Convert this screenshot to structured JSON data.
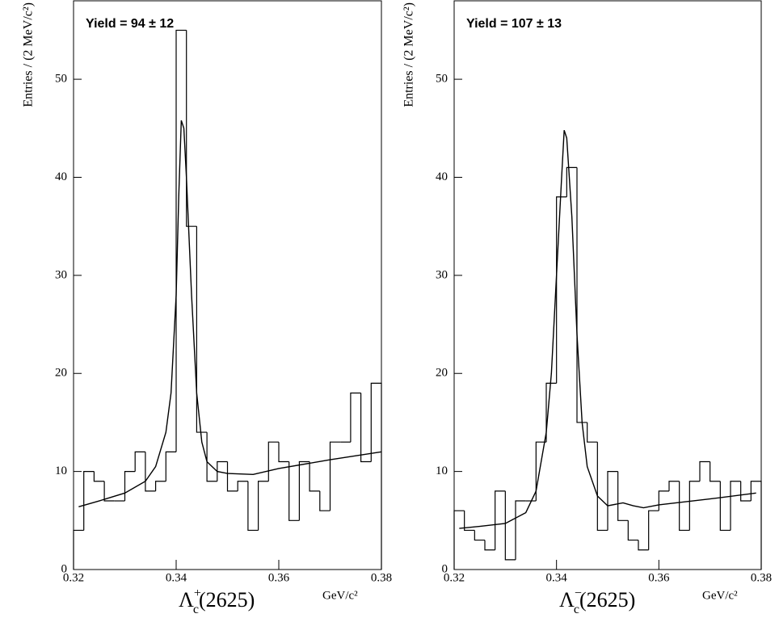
{
  "chart_data": [
    {
      "type": "histogram",
      "annotation": "Yield = 94 ± 12",
      "ylabel": "Entries / (2 MeV/c²)",
      "xlabel": {
        "base": "Λ",
        "sub": "c",
        "sup": "+",
        "rest": "(2625)"
      },
      "xunit": "GeV/c²",
      "bins": [
        0.32,
        0.322,
        0.324,
        0.326,
        0.328,
        0.33,
        0.332,
        0.334,
        0.336,
        0.338,
        0.34,
        0.342,
        0.344,
        0.346,
        0.348,
        0.35,
        0.352,
        0.354,
        0.356,
        0.358,
        0.36,
        0.362,
        0.364,
        0.366,
        0.368,
        0.37,
        0.372,
        0.374,
        0.376,
        0.378,
        0.38
      ],
      "values": [
        4,
        10,
        9,
        7,
        7,
        10,
        12,
        8,
        9,
        12,
        55,
        35,
        14,
        9,
        11,
        8,
        9,
        4,
        9,
        13,
        11,
        5,
        11,
        8,
        6,
        13,
        13,
        18,
        11,
        19
      ],
      "fit": {
        "x": [
          0.321,
          0.325,
          0.33,
          0.334,
          0.336,
          0.338,
          0.339,
          0.34,
          0.3405,
          0.341,
          0.3415,
          0.342,
          0.343,
          0.344,
          0.345,
          0.346,
          0.348,
          0.35,
          0.355,
          0.36,
          0.37,
          0.38
        ],
        "values": [
          6.4,
          7.0,
          7.8,
          9.0,
          10.5,
          14,
          18,
          28,
          38,
          45.8,
          45,
          40,
          28,
          18,
          13,
          11,
          10,
          9.8,
          9.7,
          10.3,
          11.2,
          12.0
        ]
      },
      "xlim": [
        0.32,
        0.38
      ],
      "xticks": [
        0.32,
        0.34,
        0.36,
        0.38
      ],
      "ylim": [
        0,
        58
      ],
      "yticks": [
        0,
        10,
        20,
        30,
        40,
        50
      ]
    },
    {
      "type": "histogram",
      "annotation": "Yield = 107 ± 13",
      "ylabel": "Entries / (2 MeV/c²)",
      "xlabel": {
        "base": "Λ",
        "sub": "c",
        "sup": "−",
        "rest": "(2625)"
      },
      "xunit": "GeV/c²",
      "bins": [
        0.32,
        0.322,
        0.324,
        0.326,
        0.328,
        0.33,
        0.332,
        0.334,
        0.336,
        0.338,
        0.34,
        0.342,
        0.344,
        0.346,
        0.348,
        0.35,
        0.352,
        0.354,
        0.356,
        0.358,
        0.36,
        0.362,
        0.364,
        0.366,
        0.368,
        0.37,
        0.372,
        0.374,
        0.376,
        0.378,
        0.38
      ],
      "values": [
        6,
        4,
        3,
        2,
        8,
        1,
        7,
        7,
        13,
        19,
        38,
        41,
        15,
        13,
        4,
        10,
        5,
        3,
        2,
        6,
        8,
        9,
        4,
        9,
        11,
        9,
        4,
        9,
        7,
        9
      ],
      "fit": {
        "x": [
          0.321,
          0.325,
          0.33,
          0.334,
          0.336,
          0.338,
          0.339,
          0.34,
          0.341,
          0.3415,
          0.342,
          0.343,
          0.344,
          0.345,
          0.346,
          0.348,
          0.35,
          0.353,
          0.355,
          0.357,
          0.36,
          0.37,
          0.379
        ],
        "values": [
          4.2,
          4.4,
          4.7,
          5.8,
          8,
          14,
          20,
          30,
          40,
          44.8,
          44,
          36,
          24,
          15,
          10.5,
          7.5,
          6.5,
          6.8,
          6.5,
          6.3,
          6.6,
          7.2,
          7.8
        ]
      },
      "xlim": [
        0.32,
        0.38
      ],
      "xticks": [
        0.32,
        0.34,
        0.36,
        0.38
      ],
      "ylim": [
        0,
        58
      ],
      "yticks": [
        0,
        10,
        20,
        30,
        40,
        50
      ]
    }
  ]
}
